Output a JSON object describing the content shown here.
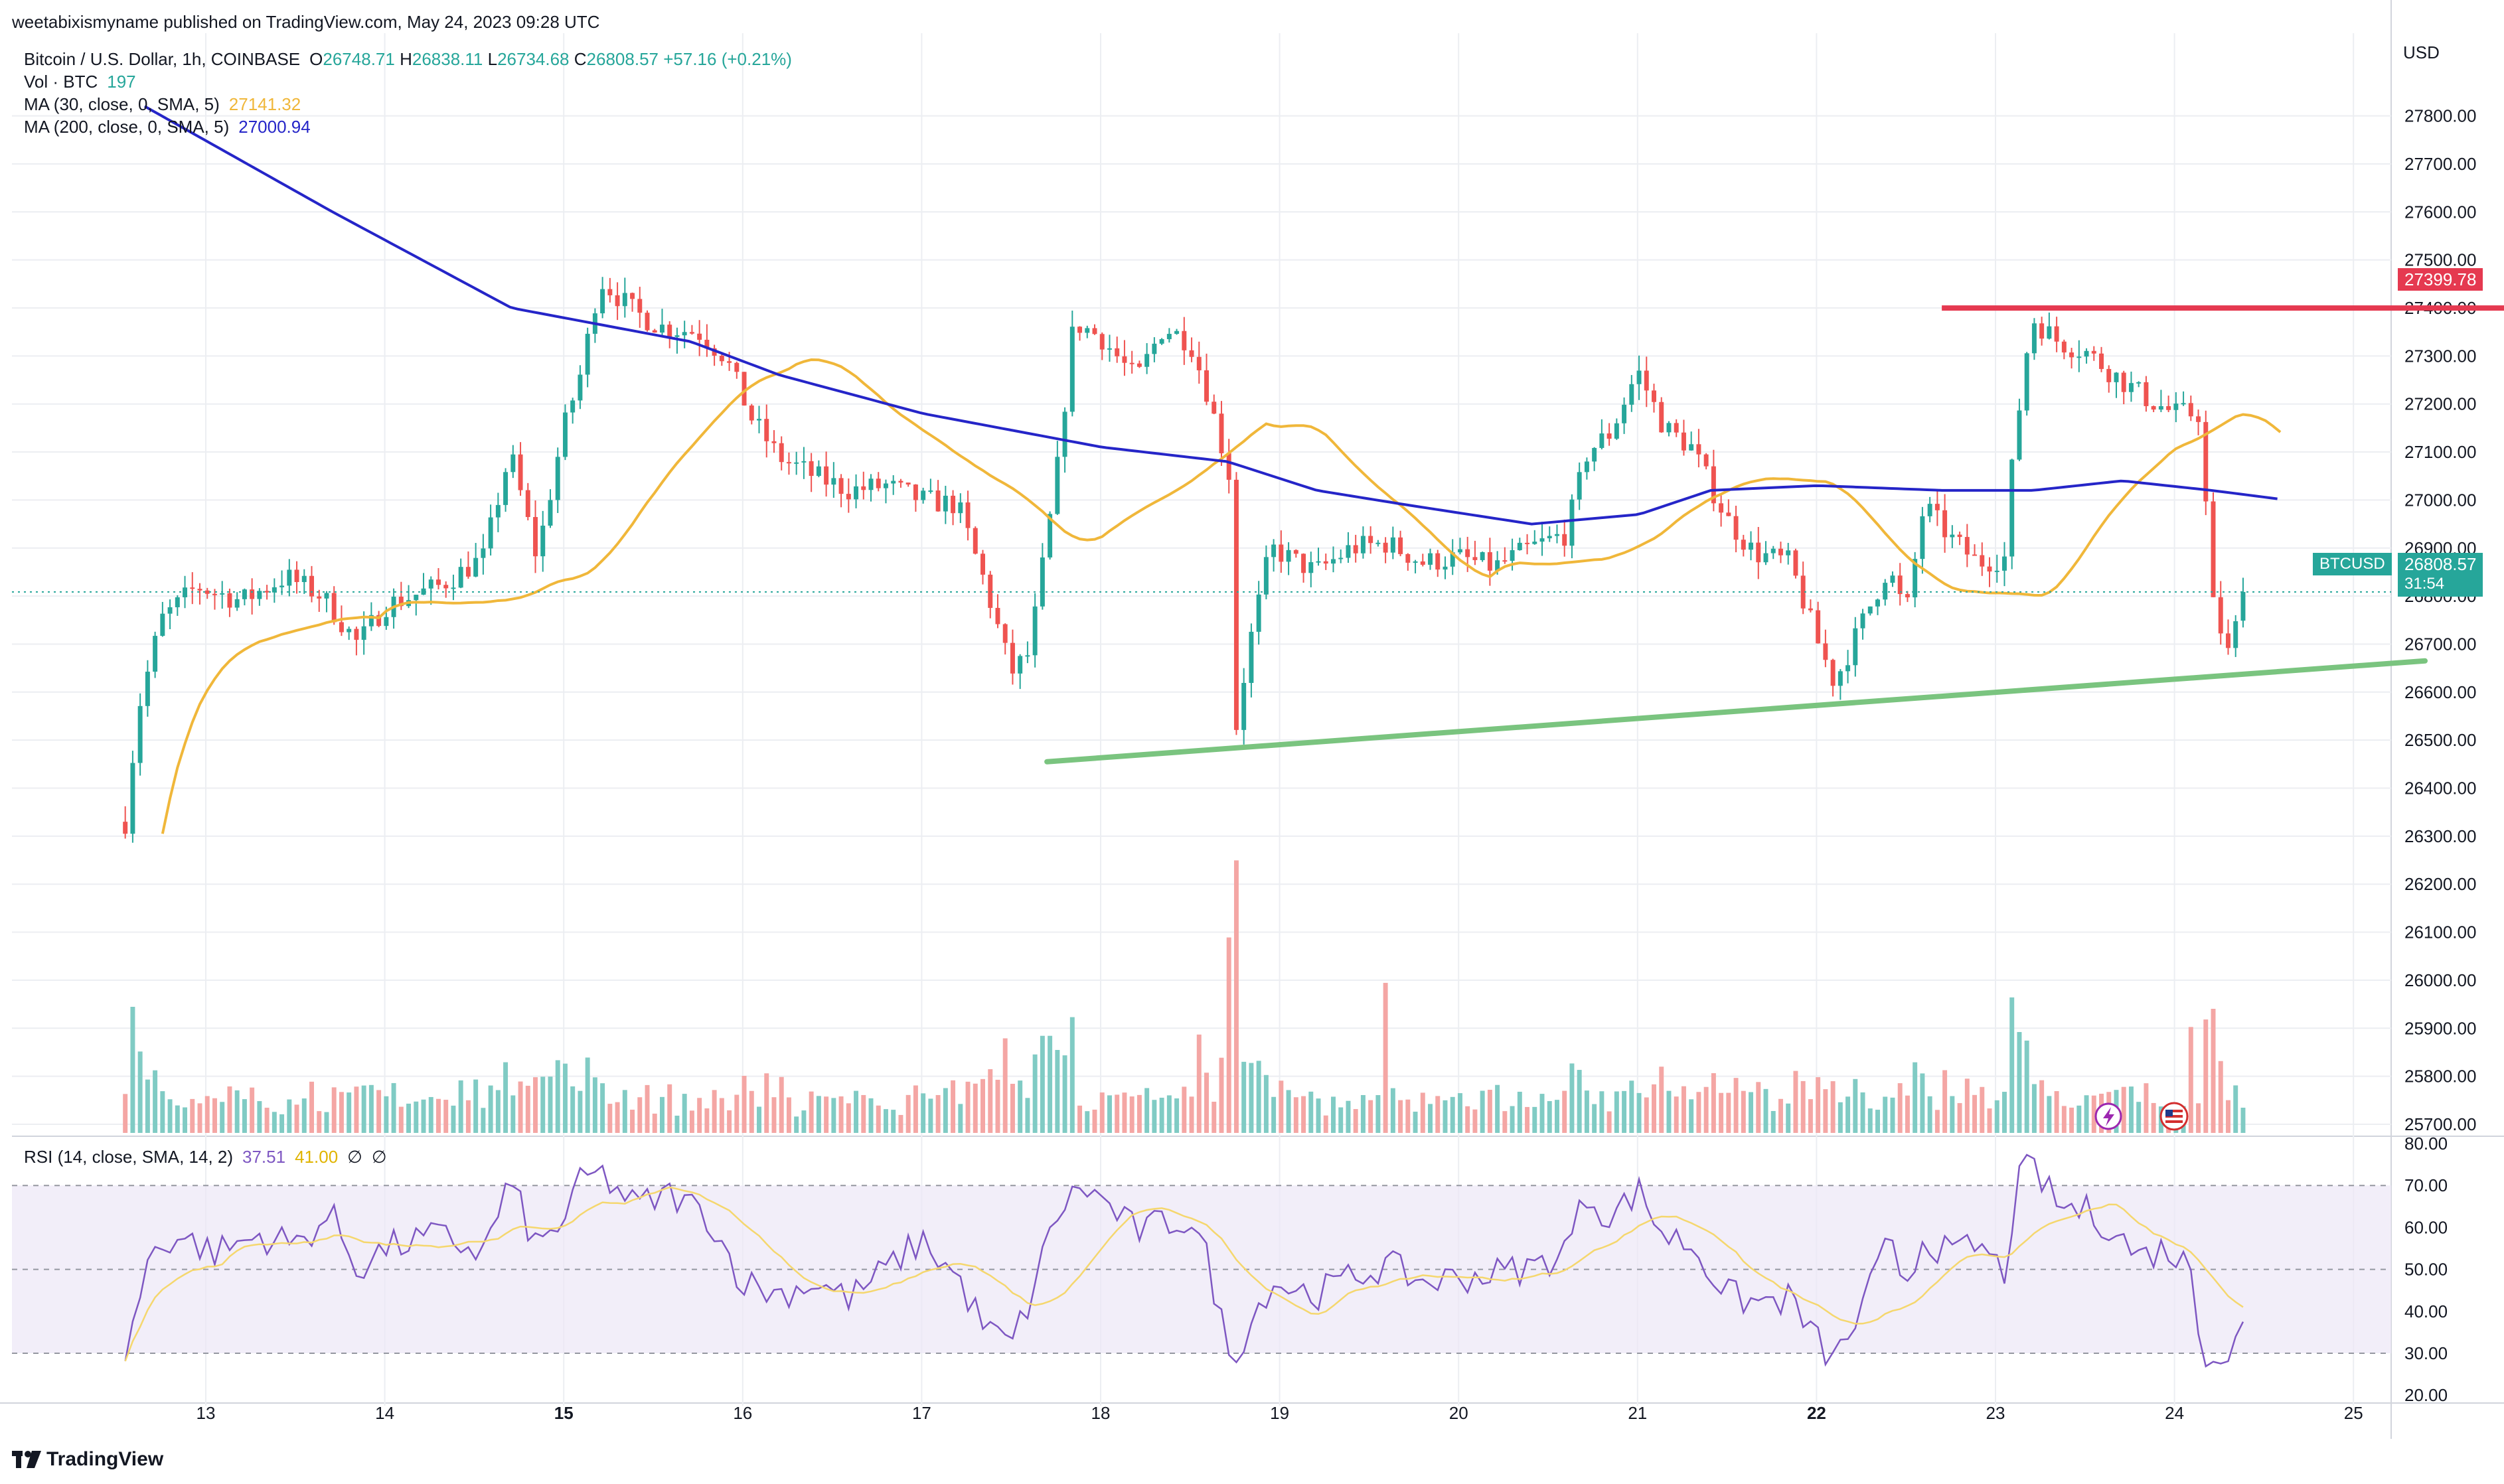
{
  "header": {
    "published": "weetabixismyname published on TradingView.com, May 24, 2023 09:28 UTC"
  },
  "legend": {
    "symbol": "Bitcoin / U.S. Dollar, 1h, COINBASE",
    "o_label": "O",
    "o": "26748.71",
    "h_label": "H",
    "h": "26838.11",
    "l_label": "L",
    "l": "26734.68",
    "c_label": "C",
    "c": "26808.57",
    "change": "+57.16 (+0.21%)",
    "vol_label": "Vol · BTC",
    "vol_value": "197",
    "ma30_label": "MA (30, close, 0, SMA, 5)",
    "ma30_value": "27141.32",
    "ma200_label": "MA (200, close, 0, SMA, 5)",
    "ma200_value": "27000.94",
    "rsi_label": "RSI (14, close, SMA, 14, 2)",
    "rsi_value": "37.51",
    "rsi_ma_value": "41.00",
    "rsi_extra1": "∅",
    "rsi_extra2": "∅"
  },
  "price_axis": {
    "currency": "USD",
    "ticks": [
      "27800.00",
      "27700.00",
      "27600.00",
      "27500.00",
      "27400.00",
      "27300.00",
      "27200.00",
      "27100.00",
      "27000.00",
      "26900.00",
      "26800.00",
      "26700.00",
      "26600.00",
      "26500.00",
      "26400.00",
      "26300.00",
      "26200.00",
      "26100.00",
      "26000.00",
      "25900.00",
      "25800.00",
      "25700.00"
    ],
    "resistance_tag": "27399.78",
    "symbol_tag": "BTCUSD",
    "last_price_tag": "26808.57",
    "countdown": "31:54"
  },
  "rsi_axis": {
    "ticks": [
      "80.00",
      "70.00",
      "60.00",
      "50.00",
      "40.00",
      "30.00",
      "20.00"
    ]
  },
  "time_axis": {
    "ticks": [
      "13",
      "14",
      "15",
      "16",
      "17",
      "18",
      "19",
      "20",
      "21",
      "22",
      "23",
      "24",
      "25"
    ]
  },
  "footer": {
    "brand": "TradingView"
  },
  "colors": {
    "up": "#26a69a",
    "down": "#ef5350",
    "ma30": "#f0b73a",
    "ma200": "#2525c8",
    "resistance": "#e53950",
    "support": "#7ac47f",
    "rsi": "#7e57c2",
    "rsi_ma": "#f5d76e",
    "grid": "#eceef2",
    "text": "#131722",
    "axis_text": "#131722"
  },
  "icons": {
    "flash": "lightning-icon",
    "flag": "us-flag-icon",
    "logo": "tradingview-logo-icon"
  },
  "chart_data": [
    {
      "type": "candlestick",
      "title": "Bitcoin / U.S. Dollar, 1h, COINBASE",
      "ylabel": "USD",
      "ylim": [
        25620,
        27870
      ],
      "x_ticks": [
        "13",
        "14",
        "15",
        "16",
        "17",
        "18",
        "19",
        "20",
        "21",
        "22",
        "23",
        "24",
        "25"
      ],
      "series": [
        {
          "name": "MA (30, close, 0, SMA, 5)",
          "last": 27141.32
        },
        {
          "name": "MA (200, close, 0, SMA, 5)",
          "last": 27000.94
        }
      ],
      "anchors_day_price": [
        [
          12.55,
          26330
        ],
        [
          12.62,
          26560
        ],
        [
          12.75,
          26750
        ],
        [
          12.95,
          26820
        ],
        [
          13.2,
          26790
        ],
        [
          13.45,
          26840
        ],
        [
          13.65,
          26800
        ],
        [
          13.85,
          26700
        ],
        [
          14.0,
          26780
        ],
        [
          14.3,
          26820
        ],
        [
          14.55,
          26880
        ],
        [
          14.7,
          27100
        ],
        [
          14.85,
          26880
        ],
        [
          15.0,
          27150
        ],
        [
          15.1,
          27270
        ],
        [
          15.2,
          27460
        ],
        [
          15.4,
          27390
        ],
        [
          15.55,
          27360
        ],
        [
          15.75,
          27350
        ],
        [
          15.9,
          27300
        ],
        [
          16.05,
          27170
        ],
        [
          16.2,
          27090
        ],
        [
          16.4,
          27050
        ],
        [
          16.6,
          27020
        ],
        [
          16.8,
          27030
        ],
        [
          17.0,
          27000
        ],
        [
          17.2,
          26990
        ],
        [
          17.35,
          26830
        ],
        [
          17.5,
          26640
        ],
        [
          17.6,
          26680
        ],
        [
          17.75,
          27040
        ],
        [
          17.85,
          27370
        ],
        [
          18.0,
          27340
        ],
        [
          18.2,
          27250
        ],
        [
          18.35,
          27360
        ],
        [
          18.5,
          27330
        ],
        [
          18.6,
          27220
        ],
        [
          18.72,
          27050
        ],
        [
          18.75,
          26510
        ],
        [
          18.82,
          26680
        ],
        [
          18.95,
          26900
        ],
        [
          19.2,
          26850
        ],
        [
          19.4,
          26900
        ],
        [
          19.6,
          26910
        ],
        [
          19.8,
          26870
        ],
        [
          20.0,
          26880
        ],
        [
          20.2,
          26860
        ],
        [
          20.4,
          26900
        ],
        [
          20.6,
          26930
        ],
        [
          20.72,
          27100
        ],
        [
          20.85,
          27140
        ],
        [
          21.0,
          27270
        ],
        [
          21.15,
          27150
        ],
        [
          21.3,
          27110
        ],
        [
          21.5,
          26960
        ],
        [
          21.65,
          26890
        ],
        [
          21.85,
          26870
        ],
        [
          22.0,
          26710
        ],
        [
          22.1,
          26620
        ],
        [
          22.25,
          26740
        ],
        [
          22.4,
          26860
        ],
        [
          22.5,
          26760
        ],
        [
          22.6,
          26990
        ],
        [
          22.75,
          26920
        ],
        [
          22.9,
          26870
        ],
        [
          23.05,
          26880
        ],
        [
          23.1,
          27100
        ],
        [
          23.2,
          27380
        ],
        [
          23.35,
          27330
        ],
        [
          23.5,
          27310
        ],
        [
          23.7,
          27250
        ],
        [
          23.85,
          27210
        ],
        [
          24.0,
          27180
        ],
        [
          24.15,
          27180
        ],
        [
          24.2,
          26800
        ],
        [
          24.3,
          26680
        ],
        [
          24.4,
          26810
        ]
      ],
      "support_line": {
        "from": [
          17.7,
          26455
        ],
        "to": [
          25.4,
          26665
        ]
      },
      "resistance_line": {
        "from": [
          22.7,
          27399.78
        ],
        "to": [
          25.05,
          27399.78
        ],
        "label": "27399.78"
      },
      "last": {
        "o": 26748.71,
        "h": 26838.11,
        "l": 26734.68,
        "c": 26808.57
      }
    },
    {
      "type": "bar",
      "title": "Vol · BTC",
      "last": 197,
      "spikes_day_volume": [
        [
          12.58,
          1.0
        ],
        [
          17.45,
          0.75
        ],
        [
          17.7,
          0.77
        ],
        [
          18.55,
          0.78
        ],
        [
          18.72,
          1.55
        ],
        [
          19.6,
          1.19
        ],
        [
          24.1,
          0.84
        ],
        [
          23.15,
          0.8
        ],
        [
          22.55,
          0.56
        ]
      ]
    },
    {
      "type": "line",
      "title": "RSI (14, close, SMA, 14, 2)",
      "ylim": [
        17,
        82
      ],
      "bands": [
        30,
        50,
        70
      ],
      "series": [
        {
          "name": "RSI",
          "last": 37.51
        },
        {
          "name": "RSI MA",
          "last": 41.0
        }
      ],
      "anchors_day_value": [
        [
          12.55,
          30
        ],
        [
          12.7,
          55
        ],
        [
          12.85,
          58
        ],
        [
          13.05,
          54
        ],
        [
          13.3,
          58
        ],
        [
          13.5,
          56
        ],
        [
          13.7,
          63
        ],
        [
          13.85,
          50
        ],
        [
          14.0,
          55
        ],
        [
          14.3,
          58
        ],
        [
          14.55,
          54
        ],
        [
          14.7,
          71
        ],
        [
          14.85,
          55
        ],
        [
          15.0,
          62
        ],
        [
          15.1,
          71
        ],
        [
          15.2,
          73
        ],
        [
          15.4,
          65
        ],
        [
          15.6,
          68
        ],
        [
          15.8,
          63
        ],
        [
          16.0,
          47
        ],
        [
          16.2,
          44
        ],
        [
          16.4,
          47
        ],
        [
          16.6,
          43
        ],
        [
          16.8,
          50
        ],
        [
          17.0,
          57
        ],
        [
          17.2,
          48
        ],
        [
          17.35,
          36
        ],
        [
          17.5,
          32
        ],
        [
          17.6,
          42
        ],
        [
          17.75,
          63
        ],
        [
          17.9,
          70
        ],
        [
          18.05,
          65
        ],
        [
          18.2,
          59
        ],
        [
          18.35,
          61
        ],
        [
          18.5,
          62
        ],
        [
          18.6,
          52
        ],
        [
          18.72,
          29
        ],
        [
          18.8,
          34
        ],
        [
          18.95,
          47
        ],
        [
          19.2,
          44
        ],
        [
          19.4,
          48
        ],
        [
          19.6,
          51
        ],
        [
          19.8,
          47
        ],
        [
          20.0,
          48
        ],
        [
          20.2,
          49
        ],
        [
          20.45,
          51
        ],
        [
          20.6,
          55
        ],
        [
          20.72,
          68
        ],
        [
          20.85,
          62
        ],
        [
          21.0,
          69
        ],
        [
          21.15,
          58
        ],
        [
          21.3,
          56
        ],
        [
          21.5,
          44
        ],
        [
          21.65,
          42
        ],
        [
          21.85,
          43
        ],
        [
          22.0,
          33
        ],
        [
          22.1,
          28
        ],
        [
          22.25,
          40
        ],
        [
          22.4,
          56
        ],
        [
          22.5,
          47
        ],
        [
          22.6,
          58
        ],
        [
          22.75,
          53
        ],
        [
          22.9,
          56
        ],
        [
          23.05,
          49
        ],
        [
          23.12,
          70
        ],
        [
          23.2,
          75
        ],
        [
          23.35,
          65
        ],
        [
          23.5,
          64
        ],
        [
          23.65,
          60
        ],
        [
          23.8,
          53
        ],
        [
          23.95,
          55
        ],
        [
          24.1,
          50
        ],
        [
          24.15,
          31
        ],
        [
          24.3,
          29
        ],
        [
          24.4,
          37.5
        ]
      ]
    }
  ]
}
